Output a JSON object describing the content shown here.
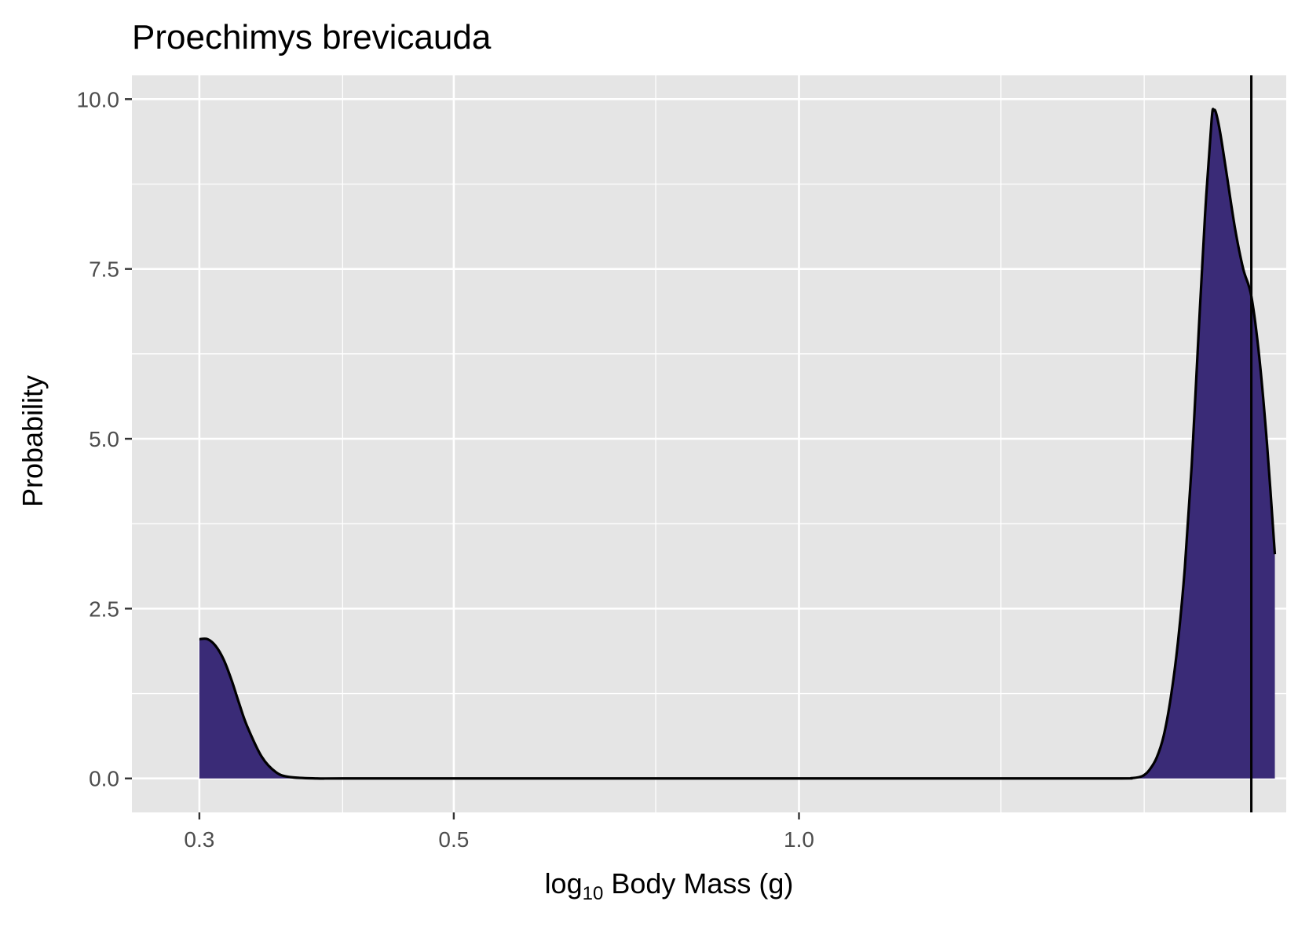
{
  "chart_data": {
    "type": "area",
    "title": "Proechimys brevicauda",
    "xlabel": {
      "prefix": "log",
      "subscript": "10",
      "rest": " Body Mass ",
      "paren_open": "(",
      "unit": "g",
      "paren_close": ")"
    },
    "ylabel": "Probability",
    "xlim": [
      0.262,
      2.66
    ],
    "ylim": [
      -0.5,
      10.35
    ],
    "x_ticks": [
      {
        "value": 0.3,
        "label": "0.3"
      },
      {
        "value": 0.5,
        "label": "0.5"
      },
      {
        "value": 1.0,
        "label": "1.0"
      }
    ],
    "x_minor_grid": [
      0.4,
      0.75,
      1.5,
      2.0
    ],
    "y_ticks": [
      {
        "value": 0.0,
        "label": "0.0"
      },
      {
        "value": 2.5,
        "label": "2.5"
      },
      {
        "value": 5.0,
        "label": "5.0"
      },
      {
        "value": 7.5,
        "label": "7.5"
      },
      {
        "value": 10.0,
        "label": "10.0"
      }
    ],
    "y_minor_grid": [
      1.25,
      3.75,
      6.25,
      8.75
    ],
    "grid": true,
    "legend": "none",
    "vline_x": 2.48,
    "series": [
      {
        "x": [
          0.3,
          0.305,
          0.31,
          0.315,
          0.32,
          0.325,
          0.33,
          0.34,
          0.35,
          0.36,
          0.38,
          0.4,
          0.5,
          0.75,
          1.0,
          1.5,
          1.9,
          1.95,
          1.98,
          2.0,
          2.02,
          2.05,
          2.08,
          2.11,
          2.14,
          2.17,
          2.2,
          2.23,
          2.26,
          2.29,
          2.3,
          2.31,
          2.33,
          2.36,
          2.4,
          2.44,
          2.48,
          2.52,
          2.56,
          2.6
        ],
        "y": [
          2.05,
          2.05,
          1.95,
          1.75,
          1.45,
          1.1,
          0.78,
          0.32,
          0.09,
          0.02,
          0.0,
          0.0,
          0.0,
          0.0,
          0.0,
          0.0,
          0.0,
          0.005,
          0.02,
          0.05,
          0.12,
          0.3,
          0.63,
          1.2,
          2.0,
          3.1,
          4.6,
          6.5,
          8.3,
          9.7,
          9.83,
          9.8,
          9.5,
          8.9,
          8.1,
          7.5,
          7.1,
          6.2,
          4.9,
          3.3
        ]
      }
    ],
    "colors": {
      "panel_background": "#e5e5e5",
      "grid": "#ffffff",
      "fill": "#3a2b77",
      "line": "#000000",
      "tick_label": "#4d4d4d"
    }
  }
}
